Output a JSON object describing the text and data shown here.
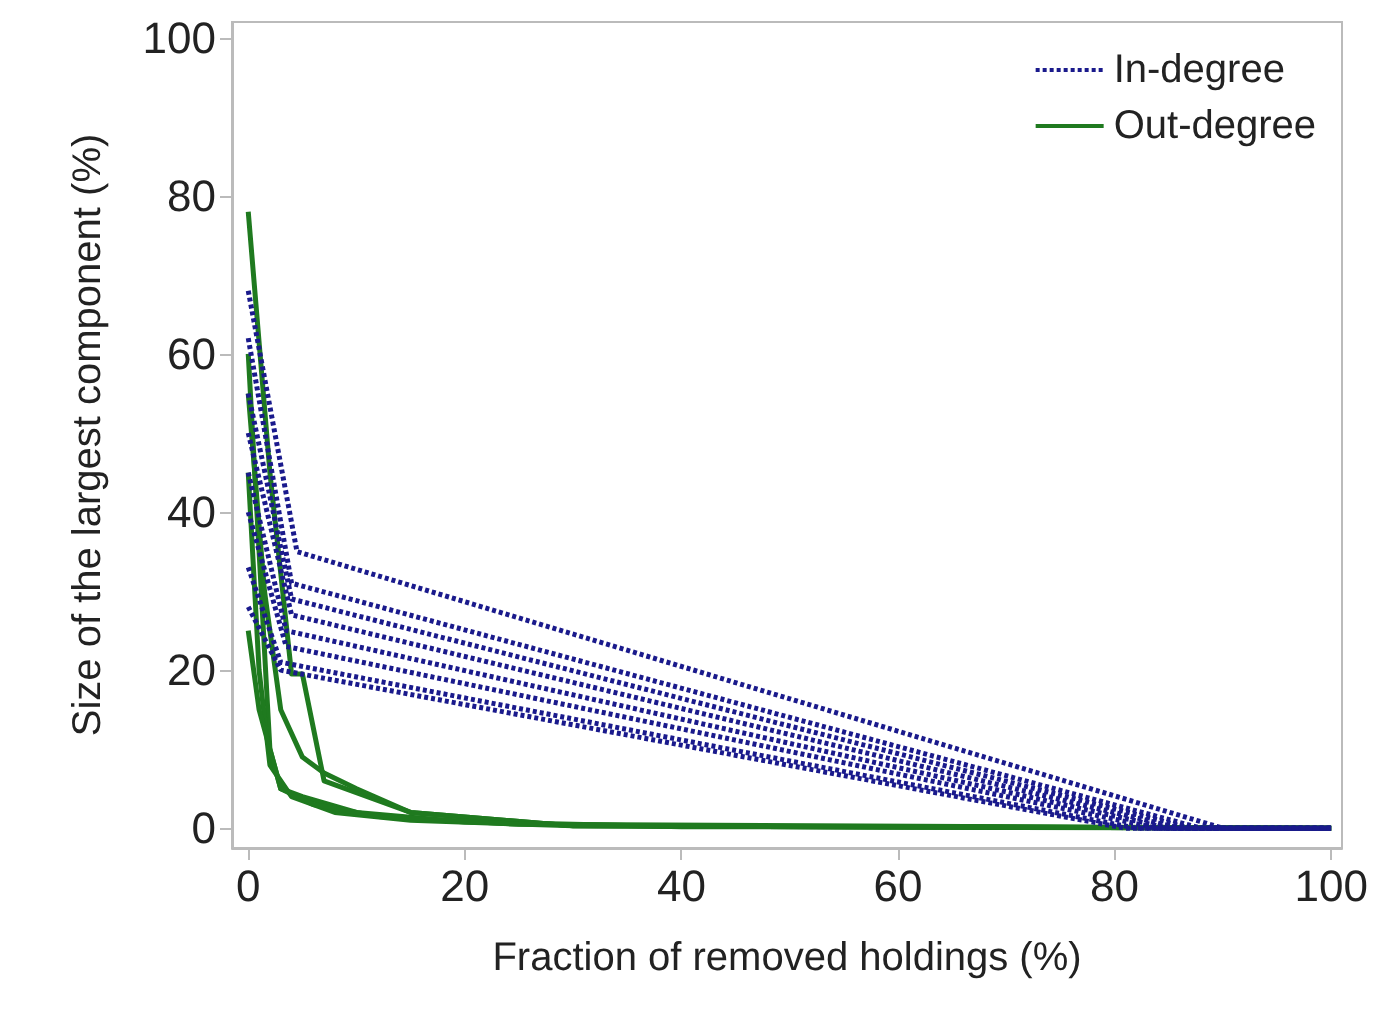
{
  "chart_data": {
    "type": "line",
    "xlabel": "Fraction of removed holdings (%)",
    "ylabel": "Size of the largest component (%)",
    "xlim": [
      -1.5,
      101
    ],
    "ylim": [
      -2.5,
      102
    ],
    "xticks": [
      0,
      20,
      40,
      60,
      80,
      100
    ],
    "yticks": [
      0,
      20,
      40,
      60,
      80,
      100
    ],
    "grid": false,
    "legend": "top right",
    "marker": "none",
    "series": [
      {
        "name": "In-degree",
        "color": "#1a1a8c",
        "line_style": "dotted",
        "x": [
          0,
          4.5,
          90,
          100
        ],
        "values": [
          68,
          35,
          0,
          0
        ]
      },
      {
        "color": "#1a1a8c",
        "line_style": "dotted",
        "x": [
          0,
          4,
          88,
          100
        ],
        "values": [
          62,
          31,
          0,
          0
        ]
      },
      {
        "color": "#1a1a8c",
        "line_style": "dotted",
        "x": [
          0,
          4,
          87,
          100
        ],
        "values": [
          55,
          29,
          0,
          0
        ]
      },
      {
        "color": "#1a1a8c",
        "line_style": "dotted",
        "x": [
          0,
          4,
          86,
          100
        ],
        "values": [
          50,
          27,
          0,
          0
        ]
      },
      {
        "color": "#1a1a8c",
        "line_style": "dotted",
        "x": [
          0,
          3.5,
          85,
          100
        ],
        "values": [
          45,
          25,
          0,
          0
        ]
      },
      {
        "color": "#1a1a8c",
        "line_style": "dotted",
        "x": [
          0,
          3.5,
          84,
          100
        ],
        "values": [
          40,
          23,
          0,
          0
        ]
      },
      {
        "color": "#1a1a8c",
        "line_style": "dotted",
        "x": [
          0,
          3,
          82,
          100
        ],
        "values": [
          33,
          21,
          0,
          0
        ]
      },
      {
        "color": "#1a1a8c",
        "line_style": "dotted",
        "x": [
          0,
          3,
          81,
          100
        ],
        "values": [
          28,
          20,
          0,
          0
        ]
      },
      {
        "name": "Out-degree",
        "color": "#1f7a1f",
        "line_style": "solid",
        "x": [
          0,
          2,
          4,
          5,
          7,
          15,
          30,
          100
        ],
        "values": [
          78,
          45,
          19.5,
          19.5,
          6,
          2,
          0.3,
          0
        ]
      },
      {
        "color": "#1f7a1f",
        "line_style": "solid",
        "x": [
          0,
          1,
          2,
          3,
          5,
          10,
          20,
          40,
          100
        ],
        "values": [
          60,
          35,
          10,
          5,
          4,
          2,
          0.8,
          0.2,
          0
        ]
      },
      {
        "color": "#1f7a1f",
        "line_style": "solid",
        "x": [
          0,
          1.5,
          3,
          5,
          7,
          10,
          15,
          30,
          100
        ],
        "values": [
          55,
          30,
          15,
          9,
          7,
          5,
          2,
          0.3,
          0
        ]
      },
      {
        "color": "#1f7a1f",
        "line_style": "solid",
        "x": [
          0,
          1,
          2,
          4,
          8,
          15,
          30,
          100
        ],
        "values": [
          45,
          20,
          8,
          4,
          2,
          1,
          0.3,
          0
        ]
      },
      {
        "color": "#1f7a1f",
        "line_style": "solid",
        "x": [
          0,
          1,
          3,
          6,
          12,
          25,
          100
        ],
        "values": [
          25,
          15,
          5,
          3,
          1.5,
          0.5,
          0
        ]
      }
    ]
  }
}
